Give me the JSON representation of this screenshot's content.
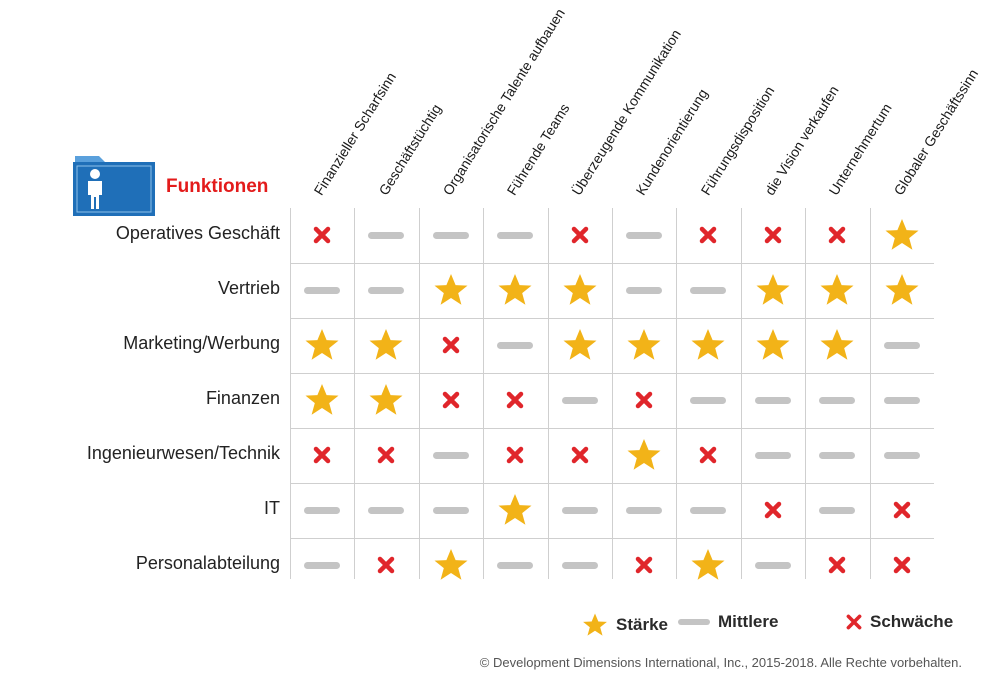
{
  "title": "Funktionen",
  "copyright": "© Development Dimensions International, Inc., 2015-2018. Alle Rechte vorbehalten.",
  "legend": {
    "strength": "Stärke",
    "medium": "Mittlere",
    "weakness": "Schwäche"
  },
  "colors": {
    "star": "#f2b318",
    "cross": "#e0262b",
    "dash": "#c4c4c4",
    "title": "#e31b1b",
    "folder": "#1f6fb8"
  },
  "chart_data": {
    "type": "table",
    "columns": [
      "Finanzieller Scharfsinn",
      "Geschäftstüchtig",
      "Organisatorische Talente aufbauen",
      "Führende Teams",
      "Überzeugende Kommunikation",
      "Kundenorientierung",
      "Führungsdisposition",
      "die Vision verkaufen",
      "Unternehmertum",
      "Globaler Geschäftssinn"
    ],
    "rows": [
      "Operatives Geschäft",
      "Vertrieb",
      "Marketing/Werbung",
      "Finanzen",
      "Ingenieurwesen/Technik",
      "IT",
      "Personalabteilung"
    ],
    "values": [
      [
        "X",
        "-",
        "-",
        "-",
        "X",
        "-",
        "X",
        "X",
        "X",
        "S"
      ],
      [
        "-",
        "-",
        "S",
        "S",
        "S",
        "-",
        "-",
        "S",
        "S",
        "S"
      ],
      [
        "S",
        "S",
        "X",
        "-",
        "S",
        "S",
        "S",
        "S",
        "S",
        "-"
      ],
      [
        "S",
        "S",
        "X",
        "X",
        "-",
        "X",
        "-",
        "-",
        "-",
        "-"
      ],
      [
        "X",
        "X",
        "-",
        "X",
        "X",
        "S",
        "X",
        "-",
        "-",
        "-"
      ],
      [
        "-",
        "-",
        "-",
        "S",
        "-",
        "-",
        "-",
        "X",
        "-",
        "X"
      ],
      [
        "-",
        "X",
        "S",
        "-",
        "-",
        "X",
        "S",
        "-",
        "X",
        "X"
      ]
    ],
    "symbol_meaning": {
      "S": "Stärke",
      "-": "Mittlere",
      "X": "Schwäche"
    }
  }
}
